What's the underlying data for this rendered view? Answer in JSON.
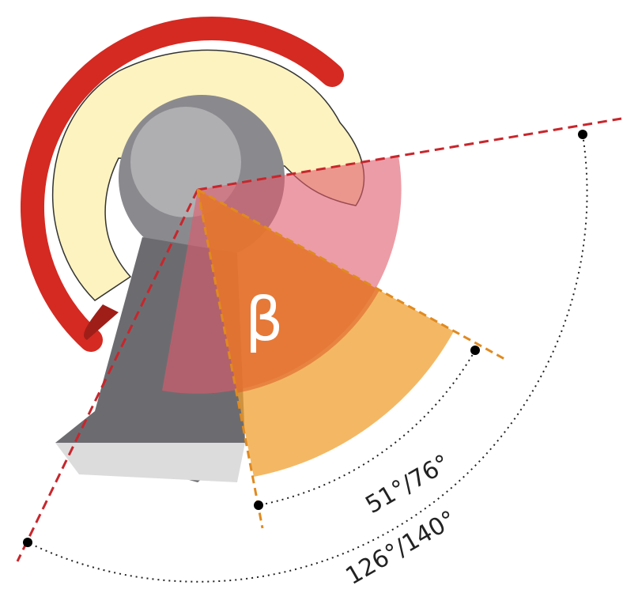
{
  "symbol": "β",
  "inner_angle_label": "51°/76°",
  "outer_angle_label": "126°/140°"
}
